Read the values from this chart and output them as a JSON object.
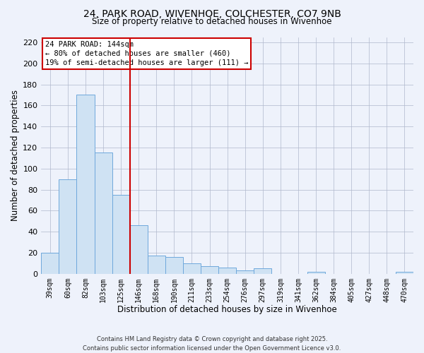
{
  "title": "24, PARK ROAD, WIVENHOE, COLCHESTER, CO7 9NB",
  "subtitle": "Size of property relative to detached houses in Wivenhoe",
  "xlabel": "Distribution of detached houses by size in Wivenhoe",
  "ylabel": "Number of detached properties",
  "categories": [
    "39sqm",
    "60sqm",
    "82sqm",
    "103sqm",
    "125sqm",
    "146sqm",
    "168sqm",
    "190sqm",
    "211sqm",
    "233sqm",
    "254sqm",
    "276sqm",
    "297sqm",
    "319sqm",
    "341sqm",
    "362sqm",
    "384sqm",
    "405sqm",
    "427sqm",
    "448sqm",
    "470sqm"
  ],
  "values": [
    20,
    90,
    170,
    115,
    75,
    46,
    17,
    16,
    10,
    7,
    6,
    3,
    5,
    0,
    0,
    2,
    0,
    0,
    0,
    0,
    2
  ],
  "bar_color": "#cfe2f3",
  "bar_edge_color": "#6fa8dc",
  "grid_color": "#b0b8cc",
  "background_color": "#eef2fb",
  "vline_x_index": 5,
  "vline_color": "#cc0000",
  "annotation_title": "24 PARK ROAD: 144sqm",
  "annotation_line1": "← 80% of detached houses are smaller (460)",
  "annotation_line2": "19% of semi-detached houses are larger (111) →",
  "annotation_box_color": "#ffffff",
  "annotation_box_edge": "#cc0000",
  "footer1": "Contains HM Land Registry data © Crown copyright and database right 2025.",
  "footer2": "Contains public sector information licensed under the Open Government Licence v3.0.",
  "ylim": [
    0,
    225
  ],
  "yticks": [
    0,
    20,
    40,
    60,
    80,
    100,
    120,
    140,
    160,
    180,
    200,
    220
  ]
}
